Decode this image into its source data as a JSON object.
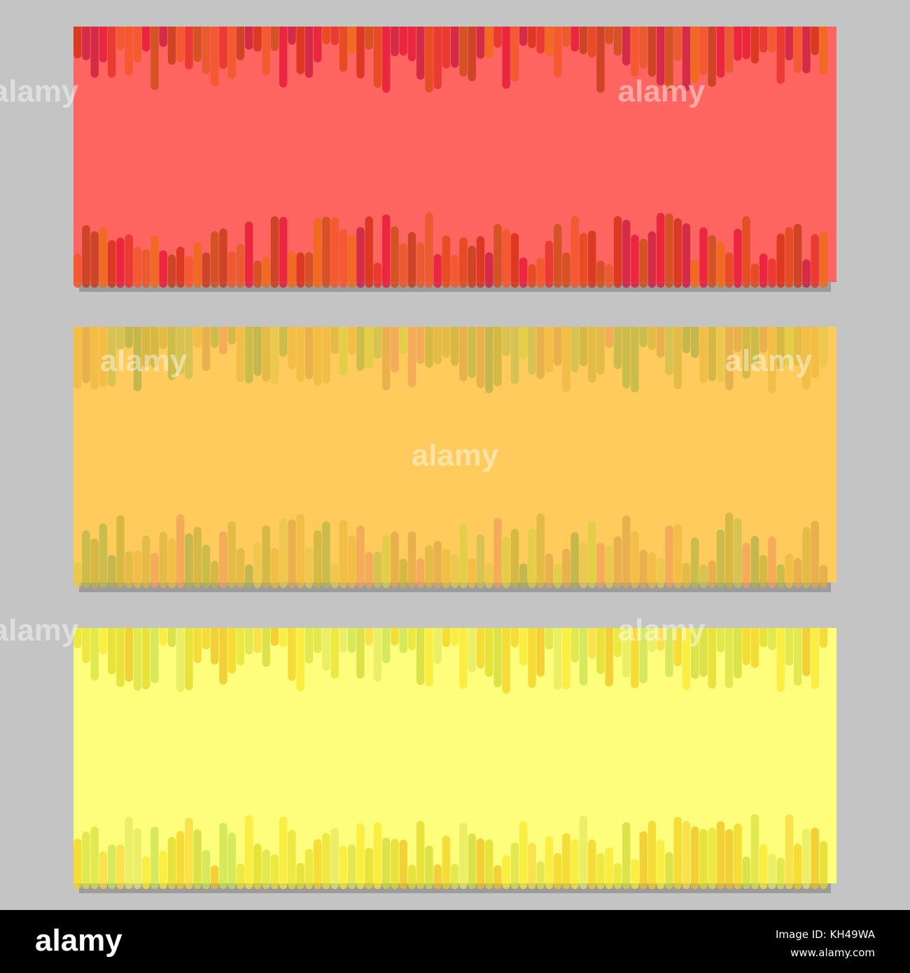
{
  "watermark": "alamy",
  "footer": {
    "logo": "alamy",
    "image_id": "Image ID: KH49WA",
    "url": "www.alamy.com"
  }
}
